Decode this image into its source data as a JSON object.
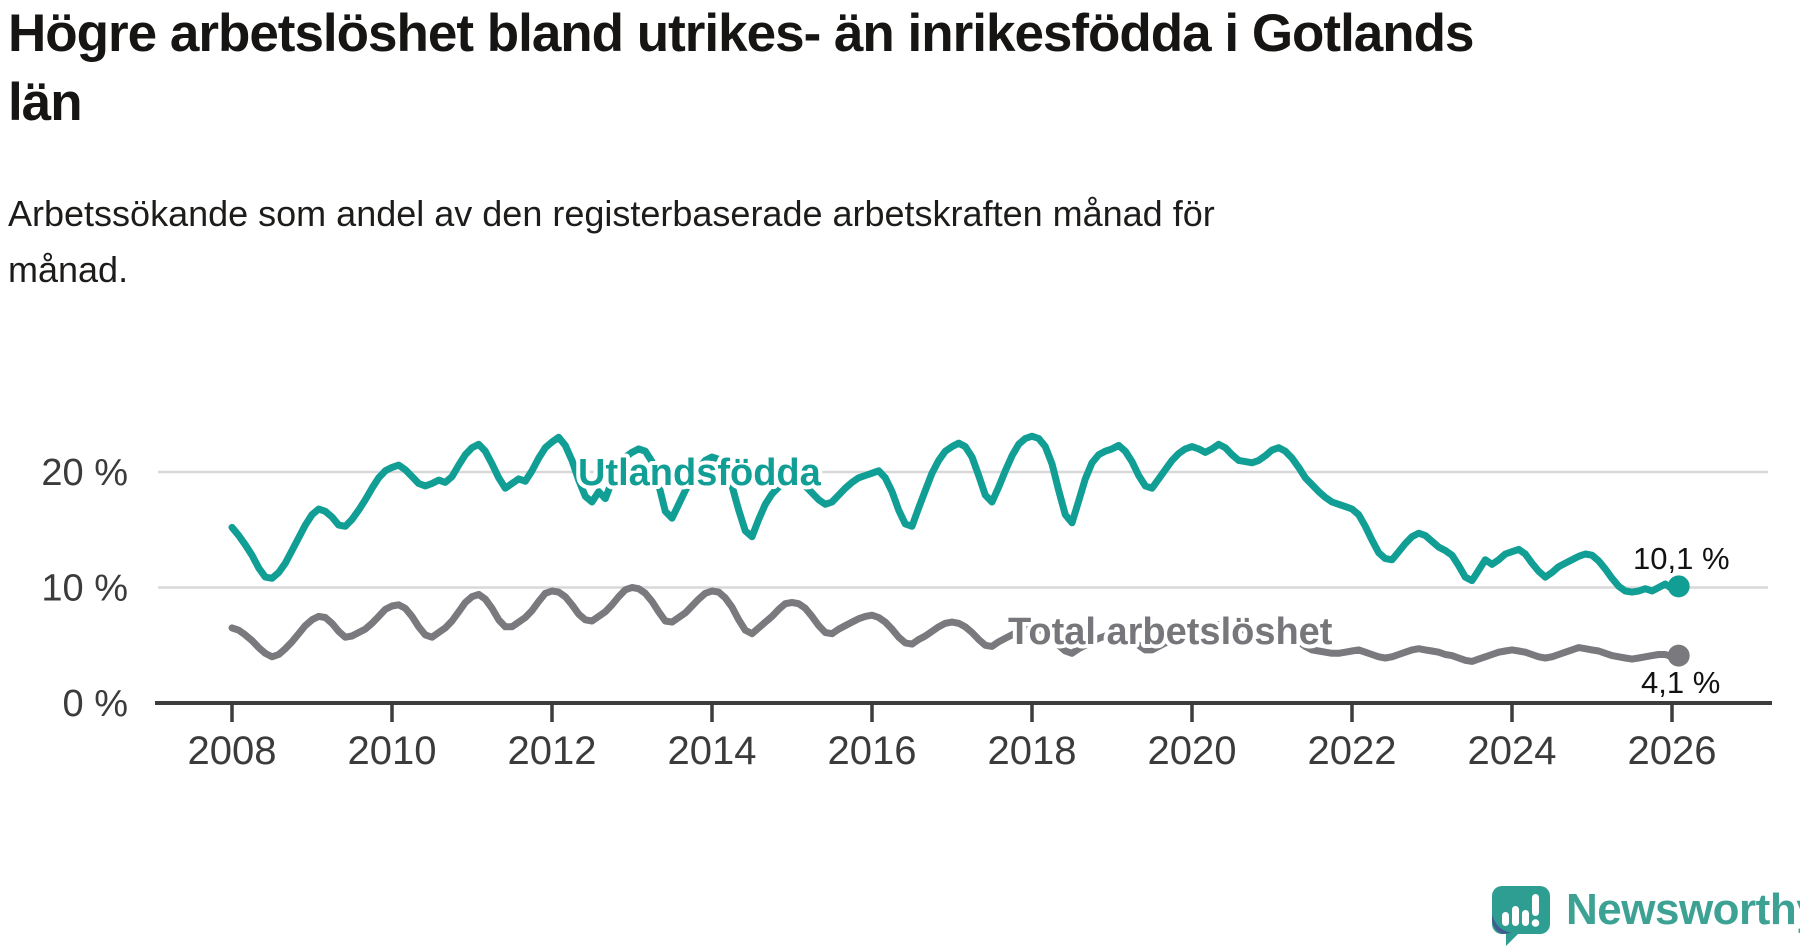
{
  "title": "Högre arbetslöshet bland utrikes- än inrikesfödda i Gotlands\nlän",
  "subtitle": "Arbetssökande som andel av den registerbaserade arbetskraften månad för\nmånad.",
  "branding": {
    "logo_text": "Newsworthy",
    "logo_icon": "newsworthy-speech-bubble-bar-chart-icon"
  },
  "colors": {
    "series_foreign_born": "#119e94",
    "series_total": "#7a7a7e",
    "gridline": "#d8d8d8",
    "axis": "#3c3c3c",
    "axis_text": "#3b3b3b",
    "end_label_text": "#121212",
    "logo_teal": "#3da294",
    "logo_navy": "#44518e",
    "title_text": "#171513"
  },
  "chart_data": {
    "type": "line",
    "title": "Högre arbetslöshet bland utrikes- än inrikesfödda i Gotlands län",
    "subtitle": "Arbetssökande som andel av den registerbaserade arbetskraften månad för månad.",
    "x_unit": "year-month",
    "x_start": 2008.0,
    "x_step": 0.0833333,
    "x_ticks": [
      2008,
      2010,
      2012,
      2014,
      2016,
      2018,
      2020,
      2022,
      2024,
      2026
    ],
    "y_ticks": [
      {
        "value": 0,
        "label": "0 %"
      },
      {
        "value": 10,
        "label": "10 %"
      },
      {
        "value": 20,
        "label": "20 %"
      }
    ],
    "ylim": [
      0,
      24.5
    ],
    "xlim": [
      2007.1,
      2027.2
    ],
    "grid": "horizontal",
    "legend": "inline-labels",
    "series": [
      {
        "name": "Utlandsfödda",
        "color": "#119e94",
        "end_label": "10,1 %",
        "end_value": 10.1,
        "values": [
          15.2,
          14.5,
          13.7,
          12.8,
          11.7,
          10.9,
          10.8,
          11.3,
          12.1,
          13.2,
          14.3,
          15.4,
          16.3,
          16.8,
          16.6,
          16.1,
          15.4,
          15.3,
          15.9,
          16.7,
          17.6,
          18.6,
          19.5,
          20.1,
          20.4,
          20.6,
          20.2,
          19.6,
          19.0,
          18.8,
          19.0,
          19.3,
          19.1,
          19.6,
          20.6,
          21.5,
          22.1,
          22.4,
          21.8,
          20.7,
          19.5,
          18.6,
          19.0,
          19.4,
          19.2,
          20.1,
          21.2,
          22.1,
          22.6,
          23.0,
          22.3,
          21.0,
          19.3,
          17.9,
          17.4,
          18.3,
          17.7,
          19.2,
          20.5,
          21.3,
          21.7,
          22.0,
          21.8,
          20.9,
          18.9,
          16.6,
          16.0,
          17.2,
          18.4,
          19.5,
          20.3,
          21.0,
          21.3,
          21.1,
          20.4,
          18.8,
          16.7,
          14.9,
          14.4,
          15.9,
          17.2,
          18.1,
          18.7,
          19.1,
          19.3,
          19.2,
          18.8,
          18.2,
          17.6,
          17.2,
          17.4,
          18.0,
          18.6,
          19.1,
          19.5,
          19.7,
          19.9,
          20.1,
          19.5,
          18.3,
          16.7,
          15.5,
          15.3,
          16.9,
          18.4,
          19.9,
          21.0,
          21.8,
          22.2,
          22.5,
          22.2,
          21.3,
          19.7,
          18.0,
          17.4,
          18.7,
          20.1,
          21.4,
          22.4,
          22.9,
          23.1,
          22.9,
          22.2,
          20.7,
          18.4,
          16.3,
          15.6,
          17.5,
          19.4,
          20.8,
          21.5,
          21.8,
          22.0,
          22.3,
          21.8,
          20.9,
          19.7,
          18.8,
          18.6,
          19.4,
          20.2,
          21.0,
          21.6,
          22.0,
          22.2,
          22.0,
          21.7,
          22.0,
          22.4,
          22.1,
          21.5,
          21.0,
          20.9,
          20.8,
          21.0,
          21.4,
          21.9,
          22.1,
          21.8,
          21.2,
          20.4,
          19.5,
          18.9,
          18.3,
          17.8,
          17.4,
          17.2,
          17.0,
          16.8,
          16.3,
          15.3,
          14.1,
          13.0,
          12.5,
          12.4,
          13.1,
          13.8,
          14.4,
          14.7,
          14.5,
          14.0,
          13.5,
          13.2,
          12.8,
          11.9,
          10.9,
          10.6,
          11.5,
          12.4,
          12.0,
          12.4,
          12.9,
          13.1,
          13.3,
          12.9,
          12.1,
          11.4,
          10.9,
          11.3,
          11.8,
          12.1,
          12.4,
          12.7,
          12.9,
          12.8,
          12.3,
          11.6,
          10.8,
          10.1,
          9.7,
          9.6,
          9.7,
          9.9,
          9.7,
          10.0,
          10.3,
          9.9,
          10.1
        ]
      },
      {
        "name": "Total arbetslöshet",
        "color": "#7a7a7e",
        "end_label": "4,1 %",
        "end_value": 4.1,
        "values": [
          6.5,
          6.3,
          5.9,
          5.4,
          4.8,
          4.3,
          4.0,
          4.2,
          4.7,
          5.3,
          6.0,
          6.7,
          7.2,
          7.5,
          7.4,
          6.9,
          6.2,
          5.7,
          5.8,
          6.1,
          6.4,
          6.9,
          7.5,
          8.1,
          8.4,
          8.5,
          8.2,
          7.5,
          6.6,
          5.9,
          5.7,
          6.1,
          6.5,
          7.1,
          7.9,
          8.7,
          9.2,
          9.4,
          9.0,
          8.2,
          7.2,
          6.6,
          6.6,
          7.0,
          7.4,
          8.0,
          8.8,
          9.5,
          9.7,
          9.6,
          9.2,
          8.5,
          7.7,
          7.2,
          7.1,
          7.5,
          7.9,
          8.5,
          9.2,
          9.8,
          10.0,
          9.9,
          9.5,
          8.8,
          7.9,
          7.1,
          7.0,
          7.4,
          7.8,
          8.4,
          9.0,
          9.5,
          9.7,
          9.6,
          9.1,
          8.3,
          7.2,
          6.3,
          6.0,
          6.5,
          7.0,
          7.5,
          8.1,
          8.6,
          8.7,
          8.6,
          8.2,
          7.5,
          6.7,
          6.1,
          6.0,
          6.4,
          6.7,
          7.0,
          7.3,
          7.5,
          7.6,
          7.4,
          7.0,
          6.4,
          5.7,
          5.2,
          5.1,
          5.5,
          5.8,
          6.2,
          6.6,
          6.9,
          7.0,
          6.9,
          6.6,
          6.1,
          5.5,
          5.0,
          4.9,
          5.3,
          5.6,
          5.9,
          6.2,
          6.4,
          6.5,
          6.4,
          6.1,
          5.6,
          5.0,
          4.5,
          4.3,
          4.7,
          5.0,
          5.3,
          5.6,
          5.8,
          6.0,
          6.1,
          5.9,
          5.5,
          5.0,
          4.6,
          4.6,
          4.9,
          5.2,
          5.4,
          5.6,
          5.8,
          6.0,
          6.0,
          6.2,
          6.6,
          6.8,
          6.7,
          6.5,
          6.4,
          6.3,
          6.2,
          6.1,
          6.1,
          6.2,
          6.2,
          6.0,
          5.7,
          5.3,
          4.9,
          4.6,
          4.5,
          4.4,
          4.3,
          4.3,
          4.4,
          4.5,
          4.6,
          4.4,
          4.2,
          4.0,
          3.9,
          4.0,
          4.2,
          4.4,
          4.6,
          4.7,
          4.6,
          4.5,
          4.4,
          4.2,
          4.1,
          3.9,
          3.7,
          3.6,
          3.8,
          4.0,
          4.2,
          4.4,
          4.5,
          4.6,
          4.5,
          4.4,
          4.2,
          4.0,
          3.9,
          4.0,
          4.2,
          4.4,
          4.6,
          4.8,
          4.7,
          4.6,
          4.5,
          4.3,
          4.1,
          4.0,
          3.9,
          3.8,
          3.9,
          4.0,
          4.1,
          4.2,
          4.2,
          4.0,
          4.1
        ]
      }
    ]
  }
}
